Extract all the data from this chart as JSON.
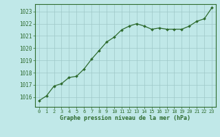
{
  "x": [
    0,
    1,
    2,
    3,
    4,
    5,
    6,
    7,
    8,
    9,
    10,
    11,
    12,
    13,
    14,
    15,
    16,
    17,
    18,
    19,
    20,
    21,
    22,
    23
  ],
  "y": [
    1015.7,
    1016.1,
    1016.9,
    1017.1,
    1017.6,
    1017.7,
    1018.3,
    1019.1,
    1019.8,
    1020.5,
    1020.9,
    1021.5,
    1021.8,
    1022.0,
    1021.8,
    1021.55,
    1021.65,
    1021.55,
    1021.55,
    1021.55,
    1021.8,
    1022.2,
    1022.4,
    1023.3
  ],
  "line_color": "#2d6a2d",
  "marker_color": "#2d6a2d",
  "bg_color": "#c0e8e8",
  "grid_color": "#9ec8c8",
  "title": "Graphe pression niveau de la mer (hPa)",
  "ylim_min": 1015.2,
  "ylim_max": 1023.6,
  "yticks": [
    1016,
    1017,
    1018,
    1019,
    1020,
    1021,
    1022,
    1023
  ],
  "xticks": [
    0,
    1,
    2,
    3,
    4,
    5,
    6,
    7,
    8,
    9,
    10,
    11,
    12,
    13,
    14,
    15,
    16,
    17,
    18,
    19,
    20,
    21,
    22,
    23
  ],
  "tick_color": "#2d6a2d",
  "label_color": "#2d6a2d"
}
